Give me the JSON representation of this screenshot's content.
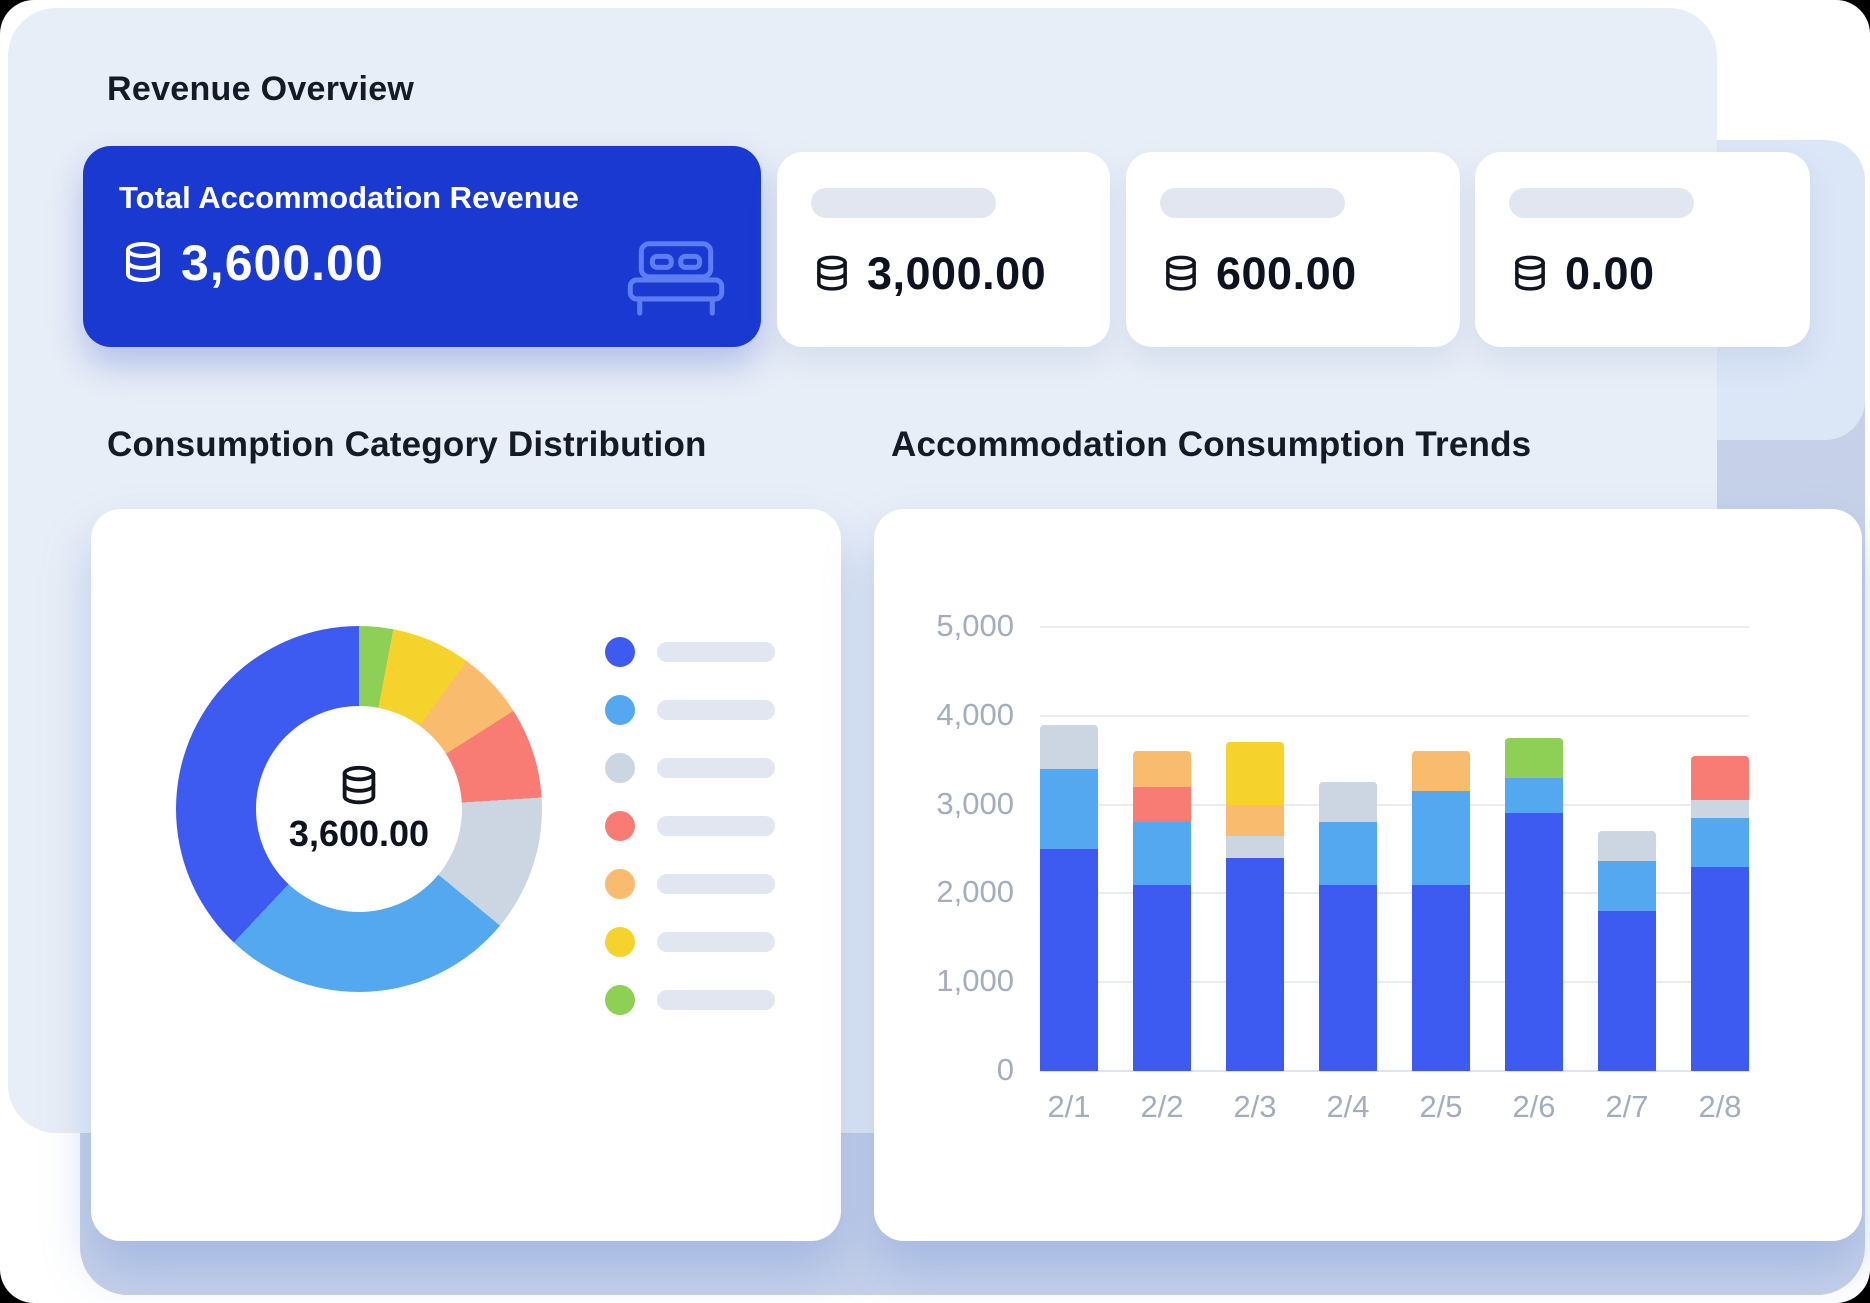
{
  "titles": {
    "revenue_overview": "Revenue Overview",
    "category_distribution": "Consumption Category Distribution",
    "consumption_trends": "Accommodation Consumption Trends"
  },
  "summary": {
    "primary": {
      "label": "Total Accommodation Revenue",
      "value": "3,600.00"
    },
    "cards": [
      {
        "value": "3,000.00"
      },
      {
        "value": "600.00"
      },
      {
        "value": "0.00"
      }
    ]
  },
  "donut": {
    "center_value": "3,600.00",
    "legend_colors": [
      "#3d5af1",
      "#54a8f0",
      "#ccd6e3",
      "#f87c74",
      "#f9bc6e",
      "#f6d32c",
      "#8ecf55"
    ]
  },
  "chart_data": [
    {
      "type": "pie",
      "donut": true,
      "title": "Consumption Category Distribution",
      "center_label": "3,600.00",
      "segments_clockwise_from_top": [
        {
          "label": "green",
          "color": "#8ecf55",
          "percent": 3
        },
        {
          "label": "yellow",
          "color": "#f6d32c",
          "percent": 7
        },
        {
          "label": "orange",
          "color": "#f9bc6e",
          "percent": 6
        },
        {
          "label": "red",
          "color": "#f87c74",
          "percent": 8
        },
        {
          "label": "gray",
          "color": "#ccd6e3",
          "percent": 12
        },
        {
          "label": "light-blue",
          "color": "#54a8f0",
          "percent": 26
        },
        {
          "label": "blue",
          "color": "#3d5af1",
          "percent": 38
        }
      ],
      "legend": "right, skeleton labels"
    },
    {
      "type": "bar",
      "stacked": true,
      "title": "Accommodation Consumption Trends",
      "categories": [
        "2/1",
        "2/2",
        "2/3",
        "2/4",
        "2/5",
        "2/6",
        "2/7",
        "2/8"
      ],
      "series": [
        {
          "name": "blue",
          "color": "#3d5af1",
          "values": [
            2500,
            2100,
            2400,
            2100,
            2100,
            2900,
            1800,
            2300
          ]
        },
        {
          "name": "light-blue",
          "color": "#54a8f0",
          "values": [
            900,
            700,
            0,
            700,
            1050,
            400,
            570,
            550
          ]
        },
        {
          "name": "gray",
          "color": "#ccd6e3",
          "values": [
            500,
            0,
            250,
            450,
            0,
            0,
            330,
            200
          ]
        },
        {
          "name": "red",
          "color": "#f87c74",
          "values": [
            0,
            400,
            0,
            0,
            0,
            0,
            0,
            500
          ]
        },
        {
          "name": "orange",
          "color": "#f9bc6e",
          "values": [
            0,
            400,
            350,
            0,
            450,
            0,
            0,
            0
          ]
        },
        {
          "name": "yellow",
          "color": "#f6d32c",
          "values": [
            0,
            0,
            700,
            0,
            0,
            0,
            0,
            0
          ]
        },
        {
          "name": "green",
          "color": "#8ecf55",
          "values": [
            0,
            0,
            0,
            0,
            0,
            450,
            0,
            0
          ]
        }
      ],
      "ylim": [
        0,
        5000
      ],
      "yticks": [
        "5,000",
        "4,000",
        "3,000",
        "2,000",
        "1,000",
        "0"
      ],
      "grid": true,
      "legend": "none"
    }
  ],
  "colors": {
    "primary_card_blue": "#1a39d0",
    "panel_light": "#e8eef7",
    "panel_mid": "#dbe6f7",
    "panel_dark": "#c6d1e9",
    "skeleton": "#e1e6f0",
    "axis_text": "#a3adbd",
    "text_dark": "#0d1220",
    "bed_icon": "#5d7ef2"
  }
}
